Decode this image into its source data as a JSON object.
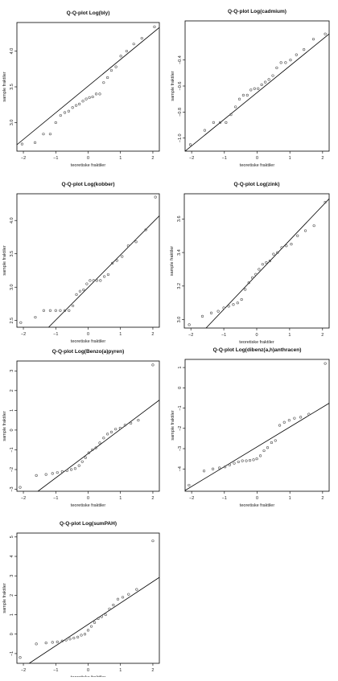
{
  "chart_data": [
    {
      "type": "scatter",
      "title": "Q-Q-plot Log(bly)",
      "xlabel": "teoretiske fraktiler",
      "ylabel": "sample fraktiler",
      "xlim": [
        -2.2,
        2.2
      ],
      "ylim": [
        2.6,
        4.4
      ],
      "xticks": [
        -2,
        -1,
        0,
        1,
        2
      ],
      "yticks": [
        3.0,
        3.5,
        4.0
      ],
      "ytick_labels": [
        "3.0",
        "3.5",
        "4.0"
      ],
      "grid": false,
      "line": {
        "x": [
          -2.2,
          2.2
        ],
        "y": [
          2.69,
          4.33
        ]
      },
      "x": [
        -2.04,
        -1.64,
        -1.38,
        -1.17,
        -1.0,
        -0.85,
        -0.72,
        -0.6,
        -0.48,
        -0.37,
        -0.27,
        -0.16,
        -0.06,
        0.04,
        0.14,
        0.25,
        0.36,
        0.48,
        0.6,
        0.72,
        0.86,
        1.01,
        1.19,
        1.41,
        1.66,
        2.05
      ],
      "y": [
        2.7,
        2.72,
        2.84,
        2.84,
        3.0,
        3.1,
        3.14,
        3.16,
        3.21,
        3.24,
        3.26,
        3.3,
        3.33,
        3.35,
        3.36,
        3.4,
        3.4,
        3.56,
        3.63,
        3.73,
        3.78,
        3.93,
        4.0,
        4.1,
        4.18,
        4.34
      ]
    },
    {
      "type": "scatter",
      "title": "Q-Q-plot Log(cadmium)",
      "xlabel": "teoretiske fraktiler",
      "ylabel": "sample fraktiler",
      "xlim": [
        -2.2,
        2.2
      ],
      "ylim": [
        -1.1,
        -0.1
      ],
      "xticks": [
        -2,
        -1,
        0,
        1,
        2
      ],
      "yticks": [
        -1.0,
        -0.8,
        -0.6,
        -0.4
      ],
      "ytick_labels": [
        "-1.0",
        "-0.8",
        "-0.6",
        "-0.4"
      ],
      "grid": false,
      "line": {
        "x": [
          -2.2,
          2.2
        ],
        "y": [
          -1.1,
          -0.2
        ]
      },
      "x": [
        -2.04,
        -1.6,
        -1.33,
        -1.13,
        -0.95,
        -0.8,
        -0.66,
        -0.54,
        -0.42,
        -0.3,
        -0.19,
        -0.08,
        0.03,
        0.14,
        0.25,
        0.36,
        0.48,
        0.6,
        0.73,
        0.87,
        1.02,
        1.2,
        1.43,
        1.72,
        2.08
      ],
      "y": [
        -1.05,
        -0.94,
        -0.88,
        -0.88,
        -0.88,
        -0.82,
        -0.76,
        -0.7,
        -0.67,
        -0.67,
        -0.63,
        -0.62,
        -0.62,
        -0.59,
        -0.57,
        -0.55,
        -0.52,
        -0.46,
        -0.42,
        -0.42,
        -0.4,
        -0.36,
        -0.32,
        -0.24,
        -0.2
      ]
    },
    {
      "type": "scatter",
      "title": "Q-Q-plot Log(kobber)",
      "xlabel": "teoretiske fraktiler",
      "ylabel": "sample fraktiler",
      "xlim": [
        -2.2,
        2.2
      ],
      "ylim": [
        2.4,
        4.4
      ],
      "xticks": [
        -2,
        -1,
        0,
        1,
        2
      ],
      "yticks": [
        2.5,
        3.0,
        3.5,
        4.0
      ],
      "ytick_labels": [
        "2.5",
        "3.0",
        "3.5",
        "4.0"
      ],
      "grid": false,
      "line": {
        "x": [
          -1.22,
          2.2
        ],
        "y": [
          2.4,
          4.07
        ]
      },
      "x": [
        -2.08,
        -1.63,
        -1.37,
        -1.17,
        -1.0,
        -0.86,
        -0.72,
        -0.59,
        -0.47,
        -0.36,
        -0.25,
        -0.14,
        -0.04,
        0.06,
        0.17,
        0.27,
        0.38,
        0.5,
        0.62,
        0.75,
        0.89,
        1.05,
        1.24,
        1.48,
        1.78,
        2.08
      ],
      "y": [
        2.47,
        2.55,
        2.65,
        2.65,
        2.65,
        2.65,
        2.65,
        2.65,
        2.72,
        2.89,
        2.94,
        2.96,
        3.05,
        3.1,
        3.1,
        3.1,
        3.1,
        3.16,
        3.19,
        3.36,
        3.4,
        3.46,
        3.62,
        3.68,
        3.86,
        4.35
      ]
    },
    {
      "type": "scatter",
      "title": "Q-Q-plot Log(zink)",
      "xlabel": "teoretiske fraktiler",
      "ylabel": "sample fraktiler",
      "xlim": [
        -2.2,
        2.2
      ],
      "ylim": [
        2.95,
        3.75
      ],
      "xticks": [
        -2,
        -1,
        0,
        1,
        2
      ],
      "yticks": [
        3.0,
        3.2,
        3.4,
        3.6
      ],
      "ytick_labels": [
        "3.0",
        "3.2",
        "3.4",
        "3.6"
      ],
      "grid": false,
      "line": {
        "x": [
          -1.54,
          2.2
        ],
        "y": [
          2.95,
          3.72
        ]
      },
      "x": [
        -2.05,
        -1.65,
        -1.38,
        -1.17,
        -1.0,
        -0.85,
        -0.71,
        -0.58,
        -0.46,
        -0.35,
        -0.24,
        -0.13,
        -0.03,
        0.07,
        0.18,
        0.29,
        0.4,
        0.51,
        0.63,
        0.76,
        0.9,
        1.05,
        1.24,
        1.48,
        1.74,
        2.08
      ],
      "y": [
        2.97,
        3.02,
        3.04,
        3.05,
        3.07,
        3.08,
        3.09,
        3.1,
        3.12,
        3.18,
        3.22,
        3.25,
        3.27,
        3.3,
        3.33,
        3.34,
        3.35,
        3.39,
        3.4,
        3.43,
        3.44,
        3.45,
        3.5,
        3.53,
        3.56,
        3.7
      ]
    },
    {
      "type": "scatter",
      "title": "Q-Q-plot Log(Benzo(a)pyren)",
      "xlabel": "teoretiske fraktiler",
      "ylabel": "sample fraktiler",
      "xlim": [
        -2.2,
        2.2
      ],
      "ylim": [
        -3.1,
        3.5
      ],
      "xticks": [
        -2,
        -1,
        0,
        1,
        2
      ],
      "yticks": [
        -3,
        -2,
        -1,
        0,
        1,
        2,
        3
      ],
      "ytick_labels": [
        "-3",
        "-2",
        "-1",
        "0",
        "1",
        "2",
        "3"
      ],
      "grid": false,
      "line": {
        "x": [
          -1.55,
          2.2
        ],
        "y": [
          -3.1,
          1.52
        ]
      },
      "x": [
        -2.1,
        -1.6,
        -1.3,
        -1.1,
        -0.95,
        -0.8,
        -0.65,
        -0.52,
        -0.4,
        -0.28,
        -0.18,
        -0.08,
        0.02,
        0.13,
        0.24,
        0.36,
        0.48,
        0.6,
        0.72,
        0.85,
        0.99,
        1.14,
        1.32,
        1.55,
        2.0
      ],
      "y": [
        -2.9,
        -2.3,
        -2.25,
        -2.2,
        -2.15,
        -2.1,
        -2.05,
        -2.0,
        -1.95,
        -1.8,
        -1.6,
        -1.4,
        -1.15,
        -1.0,
        -0.9,
        -0.65,
        -0.4,
        -0.2,
        -0.1,
        0.05,
        0.1,
        0.25,
        0.35,
        0.5,
        3.3
      ]
    },
    {
      "type": "scatter",
      "title": "Q-Q-plot Log(dibenz(a,h)anthracen)",
      "xlabel": "teoretiske fraktiler",
      "ylabel": "sample fraktiler",
      "xlim": [
        -2.2,
        2.2
      ],
      "ylim": [
        -5.1,
        1.4
      ],
      "xticks": [
        -2,
        -1,
        0,
        1,
        2
      ],
      "yticks": [
        -4,
        -3,
        -2,
        -1,
        0,
        1
      ],
      "ytick_labels": [
        "-4",
        "-3",
        "-2",
        "-1",
        "0",
        "1"
      ],
      "grid": false,
      "line": {
        "x": [
          -2.2,
          2.2
        ],
        "y": [
          -5.06,
          -0.76
        ]
      },
      "x": [
        -2.08,
        -1.62,
        -1.35,
        -1.15,
        -0.98,
        -0.84,
        -0.7,
        -0.57,
        -0.45,
        -0.33,
        -0.22,
        -0.11,
        -0.01,
        0.1,
        0.21,
        0.32,
        0.44,
        0.56,
        0.69,
        0.83,
        0.98,
        1.14,
        1.33,
        1.58,
        2.08
      ],
      "y": [
        -4.8,
        -4.1,
        -4.0,
        -3.95,
        -3.9,
        -3.8,
        -3.72,
        -3.65,
        -3.6,
        -3.6,
        -3.58,
        -3.55,
        -3.5,
        -3.35,
        -3.1,
        -2.95,
        -2.7,
        -2.6,
        -1.85,
        -1.7,
        -1.6,
        -1.5,
        -1.45,
        -1.3,
        1.2
      ]
    },
    {
      "type": "scatter",
      "title": "Q-Q-plot Log(sumPAH)",
      "xlabel": "teoretiske fraktiler",
      "ylabel": "sample fraktiler",
      "xlim": [
        -2.2,
        2.2
      ],
      "ylim": [
        -1.5,
        5.2
      ],
      "xticks": [
        -2,
        -1,
        0,
        1,
        2
      ],
      "yticks": [
        -1,
        0,
        1,
        2,
        3,
        4,
        5
      ],
      "ytick_labels": [
        "-1",
        "0",
        "1",
        "2",
        "3",
        "4",
        "5"
      ],
      "grid": false,
      "line": {
        "x": [
          -1.82,
          2.2
        ],
        "y": [
          -1.5,
          2.92
        ]
      },
      "x": [
        -2.1,
        -1.6,
        -1.3,
        -1.1,
        -0.95,
        -0.8,
        -0.68,
        -0.56,
        -0.44,
        -0.32,
        -0.21,
        -0.1,
        0.0,
        0.1,
        0.2,
        0.31,
        0.42,
        0.54,
        0.66,
        0.78,
        0.92,
        1.07,
        1.25,
        1.5,
        2.0
      ],
      "y": [
        -1.2,
        -0.5,
        -0.45,
        -0.42,
        -0.4,
        -0.35,
        -0.3,
        -0.25,
        -0.2,
        -0.15,
        -0.05,
        0.0,
        0.2,
        0.4,
        0.6,
        0.8,
        0.9,
        1.0,
        1.3,
        1.5,
        1.8,
        1.9,
        2.05,
        2.3,
        4.8
      ]
    }
  ]
}
